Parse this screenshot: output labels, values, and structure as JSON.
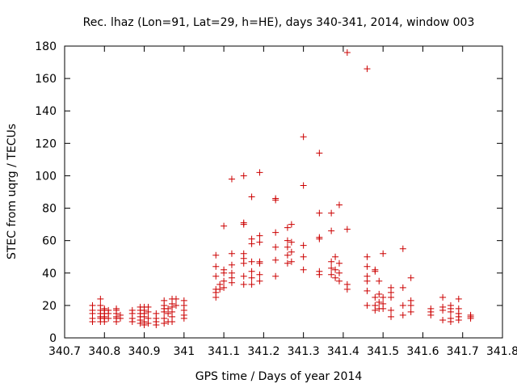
{
  "chart_data": {
    "type": "scatter",
    "title": "Rec. lhaz (Lon=91, Lat=29, h=HE), days 340-341, 2014, window 003",
    "xlabel": "GPS time / Days of year 2014",
    "ylabel": "STEC from uqrg / TECUs",
    "xlim": [
      340.7,
      341.8
    ],
    "ylim": [
      0,
      180
    ],
    "xticks": [
      "340.7",
      "340.8",
      "340.9",
      "341",
      "341.1",
      "341.2",
      "341.3",
      "341.4",
      "341.5",
      "341.6",
      "341.7",
      "341.8"
    ],
    "yticks": [
      "0",
      "20",
      "40",
      "60",
      "80",
      "100",
      "120",
      "140",
      "160",
      "180"
    ],
    "grid": false,
    "legend": "none",
    "marker": "+",
    "color": "#cc0000",
    "points": [
      [
        340.77,
        10
      ],
      [
        340.77,
        12
      ],
      [
        340.77,
        15
      ],
      [
        340.77,
        17
      ],
      [
        340.77,
        20
      ],
      [
        340.79,
        10
      ],
      [
        340.79,
        12
      ],
      [
        340.79,
        13
      ],
      [
        340.79,
        15
      ],
      [
        340.79,
        17
      ],
      [
        340.79,
        20
      ],
      [
        340.79,
        24
      ],
      [
        340.8,
        10
      ],
      [
        340.8,
        12
      ],
      [
        340.8,
        13
      ],
      [
        340.8,
        15
      ],
      [
        340.8,
        17
      ],
      [
        340.8,
        18
      ],
      [
        340.81,
        12
      ],
      [
        340.81,
        15
      ],
      [
        340.81,
        17
      ],
      [
        340.83,
        10
      ],
      [
        340.83,
        12
      ],
      [
        340.83,
        13
      ],
      [
        340.83,
        15
      ],
      [
        340.83,
        17
      ],
      [
        340.83,
        18
      ],
      [
        340.84,
        12
      ],
      [
        340.84,
        14
      ],
      [
        340.87,
        10
      ],
      [
        340.87,
        12
      ],
      [
        340.87,
        15
      ],
      [
        340.87,
        17
      ],
      [
        340.89,
        9
      ],
      [
        340.89,
        11
      ],
      [
        340.89,
        13
      ],
      [
        340.89,
        15
      ],
      [
        340.89,
        17
      ],
      [
        340.89,
        19
      ],
      [
        340.9,
        8
      ],
      [
        340.9,
        10
      ],
      [
        340.9,
        13
      ],
      [
        340.9,
        15
      ],
      [
        340.9,
        17
      ],
      [
        340.9,
        19
      ],
      [
        340.91,
        9
      ],
      [
        340.91,
        12
      ],
      [
        340.91,
        16
      ],
      [
        340.91,
        19
      ],
      [
        340.93,
        8
      ],
      [
        340.93,
        10
      ],
      [
        340.93,
        12
      ],
      [
        340.93,
        15
      ],
      [
        340.95,
        9
      ],
      [
        340.95,
        12
      ],
      [
        340.95,
        16
      ],
      [
        340.95,
        18
      ],
      [
        340.95,
        20
      ],
      [
        340.95,
        23
      ],
      [
        340.96,
        10
      ],
      [
        340.96,
        15
      ],
      [
        340.96,
        18
      ],
      [
        340.97,
        10
      ],
      [
        340.97,
        13
      ],
      [
        340.97,
        16
      ],
      [
        340.97,
        19
      ],
      [
        340.97,
        21
      ],
      [
        340.97,
        24
      ],
      [
        340.98,
        20
      ],
      [
        340.98,
        24
      ],
      [
        341.0,
        12
      ],
      [
        341.0,
        14
      ],
      [
        341.0,
        17
      ],
      [
        341.0,
        20
      ],
      [
        341.0,
        23
      ],
      [
        341.08,
        25
      ],
      [
        341.08,
        28
      ],
      [
        341.08,
        30
      ],
      [
        341.08,
        38
      ],
      [
        341.08,
        44
      ],
      [
        341.08,
        51
      ],
      [
        341.09,
        30
      ],
      [
        341.09,
        33
      ],
      [
        341.1,
        31
      ],
      [
        341.1,
        35
      ],
      [
        341.1,
        40
      ],
      [
        341.1,
        42
      ],
      [
        341.1,
        69
      ],
      [
        341.12,
        34
      ],
      [
        341.12,
        37
      ],
      [
        341.12,
        40
      ],
      [
        341.12,
        45
      ],
      [
        341.12,
        52
      ],
      [
        341.12,
        98
      ],
      [
        341.15,
        33
      ],
      [
        341.15,
        38
      ],
      [
        341.15,
        46
      ],
      [
        341.15,
        49
      ],
      [
        341.15,
        52
      ],
      [
        341.15,
        70
      ],
      [
        341.15,
        71
      ],
      [
        341.15,
        100
      ],
      [
        341.17,
        33
      ],
      [
        341.17,
        37
      ],
      [
        341.17,
        41
      ],
      [
        341.17,
        47
      ],
      [
        341.17,
        58
      ],
      [
        341.17,
        61
      ],
      [
        341.17,
        87
      ],
      [
        341.19,
        35
      ],
      [
        341.19,
        39
      ],
      [
        341.19,
        46
      ],
      [
        341.19,
        47
      ],
      [
        341.19,
        59
      ],
      [
        341.19,
        63
      ],
      [
        341.19,
        102
      ],
      [
        341.23,
        38
      ],
      [
        341.23,
        48
      ],
      [
        341.23,
        56
      ],
      [
        341.23,
        65
      ],
      [
        341.23,
        85
      ],
      [
        341.23,
        86
      ],
      [
        341.26,
        46
      ],
      [
        341.26,
        51
      ],
      [
        341.26,
        56
      ],
      [
        341.26,
        60
      ],
      [
        341.26,
        68
      ],
      [
        341.27,
        47
      ],
      [
        341.27,
        53
      ],
      [
        341.27,
        59
      ],
      [
        341.27,
        70
      ],
      [
        341.3,
        42
      ],
      [
        341.3,
        50
      ],
      [
        341.3,
        57
      ],
      [
        341.3,
        94
      ],
      [
        341.3,
        124
      ],
      [
        341.34,
        39
      ],
      [
        341.34,
        41
      ],
      [
        341.34,
        61
      ],
      [
        341.34,
        62
      ],
      [
        341.34,
        77
      ],
      [
        341.34,
        114
      ],
      [
        341.37,
        39
      ],
      [
        341.37,
        43
      ],
      [
        341.37,
        47
      ],
      [
        341.37,
        66
      ],
      [
        341.37,
        77
      ],
      [
        341.38,
        37
      ],
      [
        341.38,
        42
      ],
      [
        341.38,
        50
      ],
      [
        341.39,
        35
      ],
      [
        341.39,
        40
      ],
      [
        341.39,
        46
      ],
      [
        341.39,
        82
      ],
      [
        341.41,
        30
      ],
      [
        341.41,
        33
      ],
      [
        341.41,
        67
      ],
      [
        341.41,
        176
      ],
      [
        341.46,
        20
      ],
      [
        341.46,
        29
      ],
      [
        341.46,
        35
      ],
      [
        341.46,
        38
      ],
      [
        341.46,
        44
      ],
      [
        341.46,
        50
      ],
      [
        341.46,
        166
      ],
      [
        341.48,
        17
      ],
      [
        341.48,
        20
      ],
      [
        341.48,
        25
      ],
      [
        341.48,
        41
      ],
      [
        341.48,
        42
      ],
      [
        341.49,
        18
      ],
      [
        341.49,
        22
      ],
      [
        341.49,
        27
      ],
      [
        341.49,
        35
      ],
      [
        341.5,
        18
      ],
      [
        341.5,
        21
      ],
      [
        341.5,
        25
      ],
      [
        341.5,
        52
      ],
      [
        341.52,
        13
      ],
      [
        341.52,
        17
      ],
      [
        341.52,
        25
      ],
      [
        341.52,
        28
      ],
      [
        341.52,
        31
      ],
      [
        341.55,
        14
      ],
      [
        341.55,
        20
      ],
      [
        341.55,
        31
      ],
      [
        341.55,
        55
      ],
      [
        341.57,
        16
      ],
      [
        341.57,
        20
      ],
      [
        341.57,
        23
      ],
      [
        341.57,
        37
      ],
      [
        341.62,
        14
      ],
      [
        341.62,
        16
      ],
      [
        341.62,
        18
      ],
      [
        341.65,
        11
      ],
      [
        341.65,
        17
      ],
      [
        341.65,
        19
      ],
      [
        341.65,
        25
      ],
      [
        341.67,
        10
      ],
      [
        341.67,
        12
      ],
      [
        341.67,
        16
      ],
      [
        341.67,
        18
      ],
      [
        341.67,
        20
      ],
      [
        341.69,
        11
      ],
      [
        341.69,
        13
      ],
      [
        341.69,
        15
      ],
      [
        341.69,
        18
      ],
      [
        341.69,
        24
      ],
      [
        341.72,
        12
      ],
      [
        341.72,
        13
      ],
      [
        341.72,
        14
      ]
    ]
  }
}
